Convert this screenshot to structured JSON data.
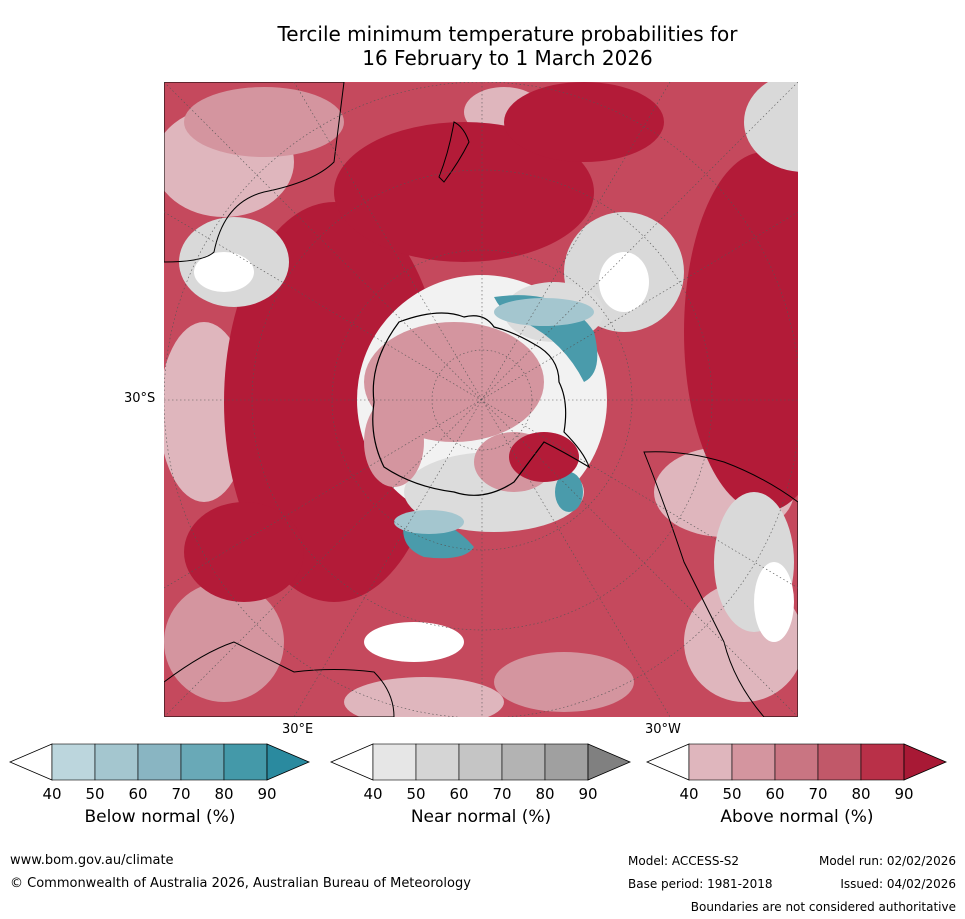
{
  "title": {
    "line1": "Tercile minimum temperature probabilities for",
    "line2": "16 February to 1 March 2026"
  },
  "map": {
    "lat_label": "30°S",
    "lon_label_east": "30°E",
    "lon_label_west": "30°W"
  },
  "colorbars": [
    {
      "title": "Below normal (%)",
      "ticks": [
        "40",
        "50",
        "60",
        "70",
        "80",
        "90"
      ],
      "colors": [
        "#bcd6dd",
        "#a4c6cf",
        "#89b5c2",
        "#69a9b7",
        "#4499a9",
        "#2a8a9f"
      ]
    },
    {
      "title": "Near normal (%)",
      "ticks": [
        "40",
        "50",
        "60",
        "70",
        "80",
        "90"
      ],
      "colors": [
        "#e6e6e6",
        "#d5d5d5",
        "#c5c5c5",
        "#b3b3b3",
        "#a0a0a0",
        "#808080"
      ]
    },
    {
      "title": "Above normal (%)",
      "ticks": [
        "40",
        "50",
        "60",
        "70",
        "80",
        "90"
      ],
      "colors": [
        "#dfb6bd",
        "#d4959f",
        "#c97582",
        "#c15869",
        "#b93048",
        "#a81935"
      ]
    }
  ],
  "footer": {
    "website": "www.bom.gov.au/climate",
    "copyright": "© Commonwealth of Australia 2026, Australian Bureau of Meteorology",
    "model": "Model: ACCESS-S2",
    "base_period": "Base period: 1981-2018",
    "model_run": "Model run: 02/02/2026",
    "issued": "Issued: 04/02/2026",
    "disclaimer": "Boundaries are not considered authoritative"
  }
}
